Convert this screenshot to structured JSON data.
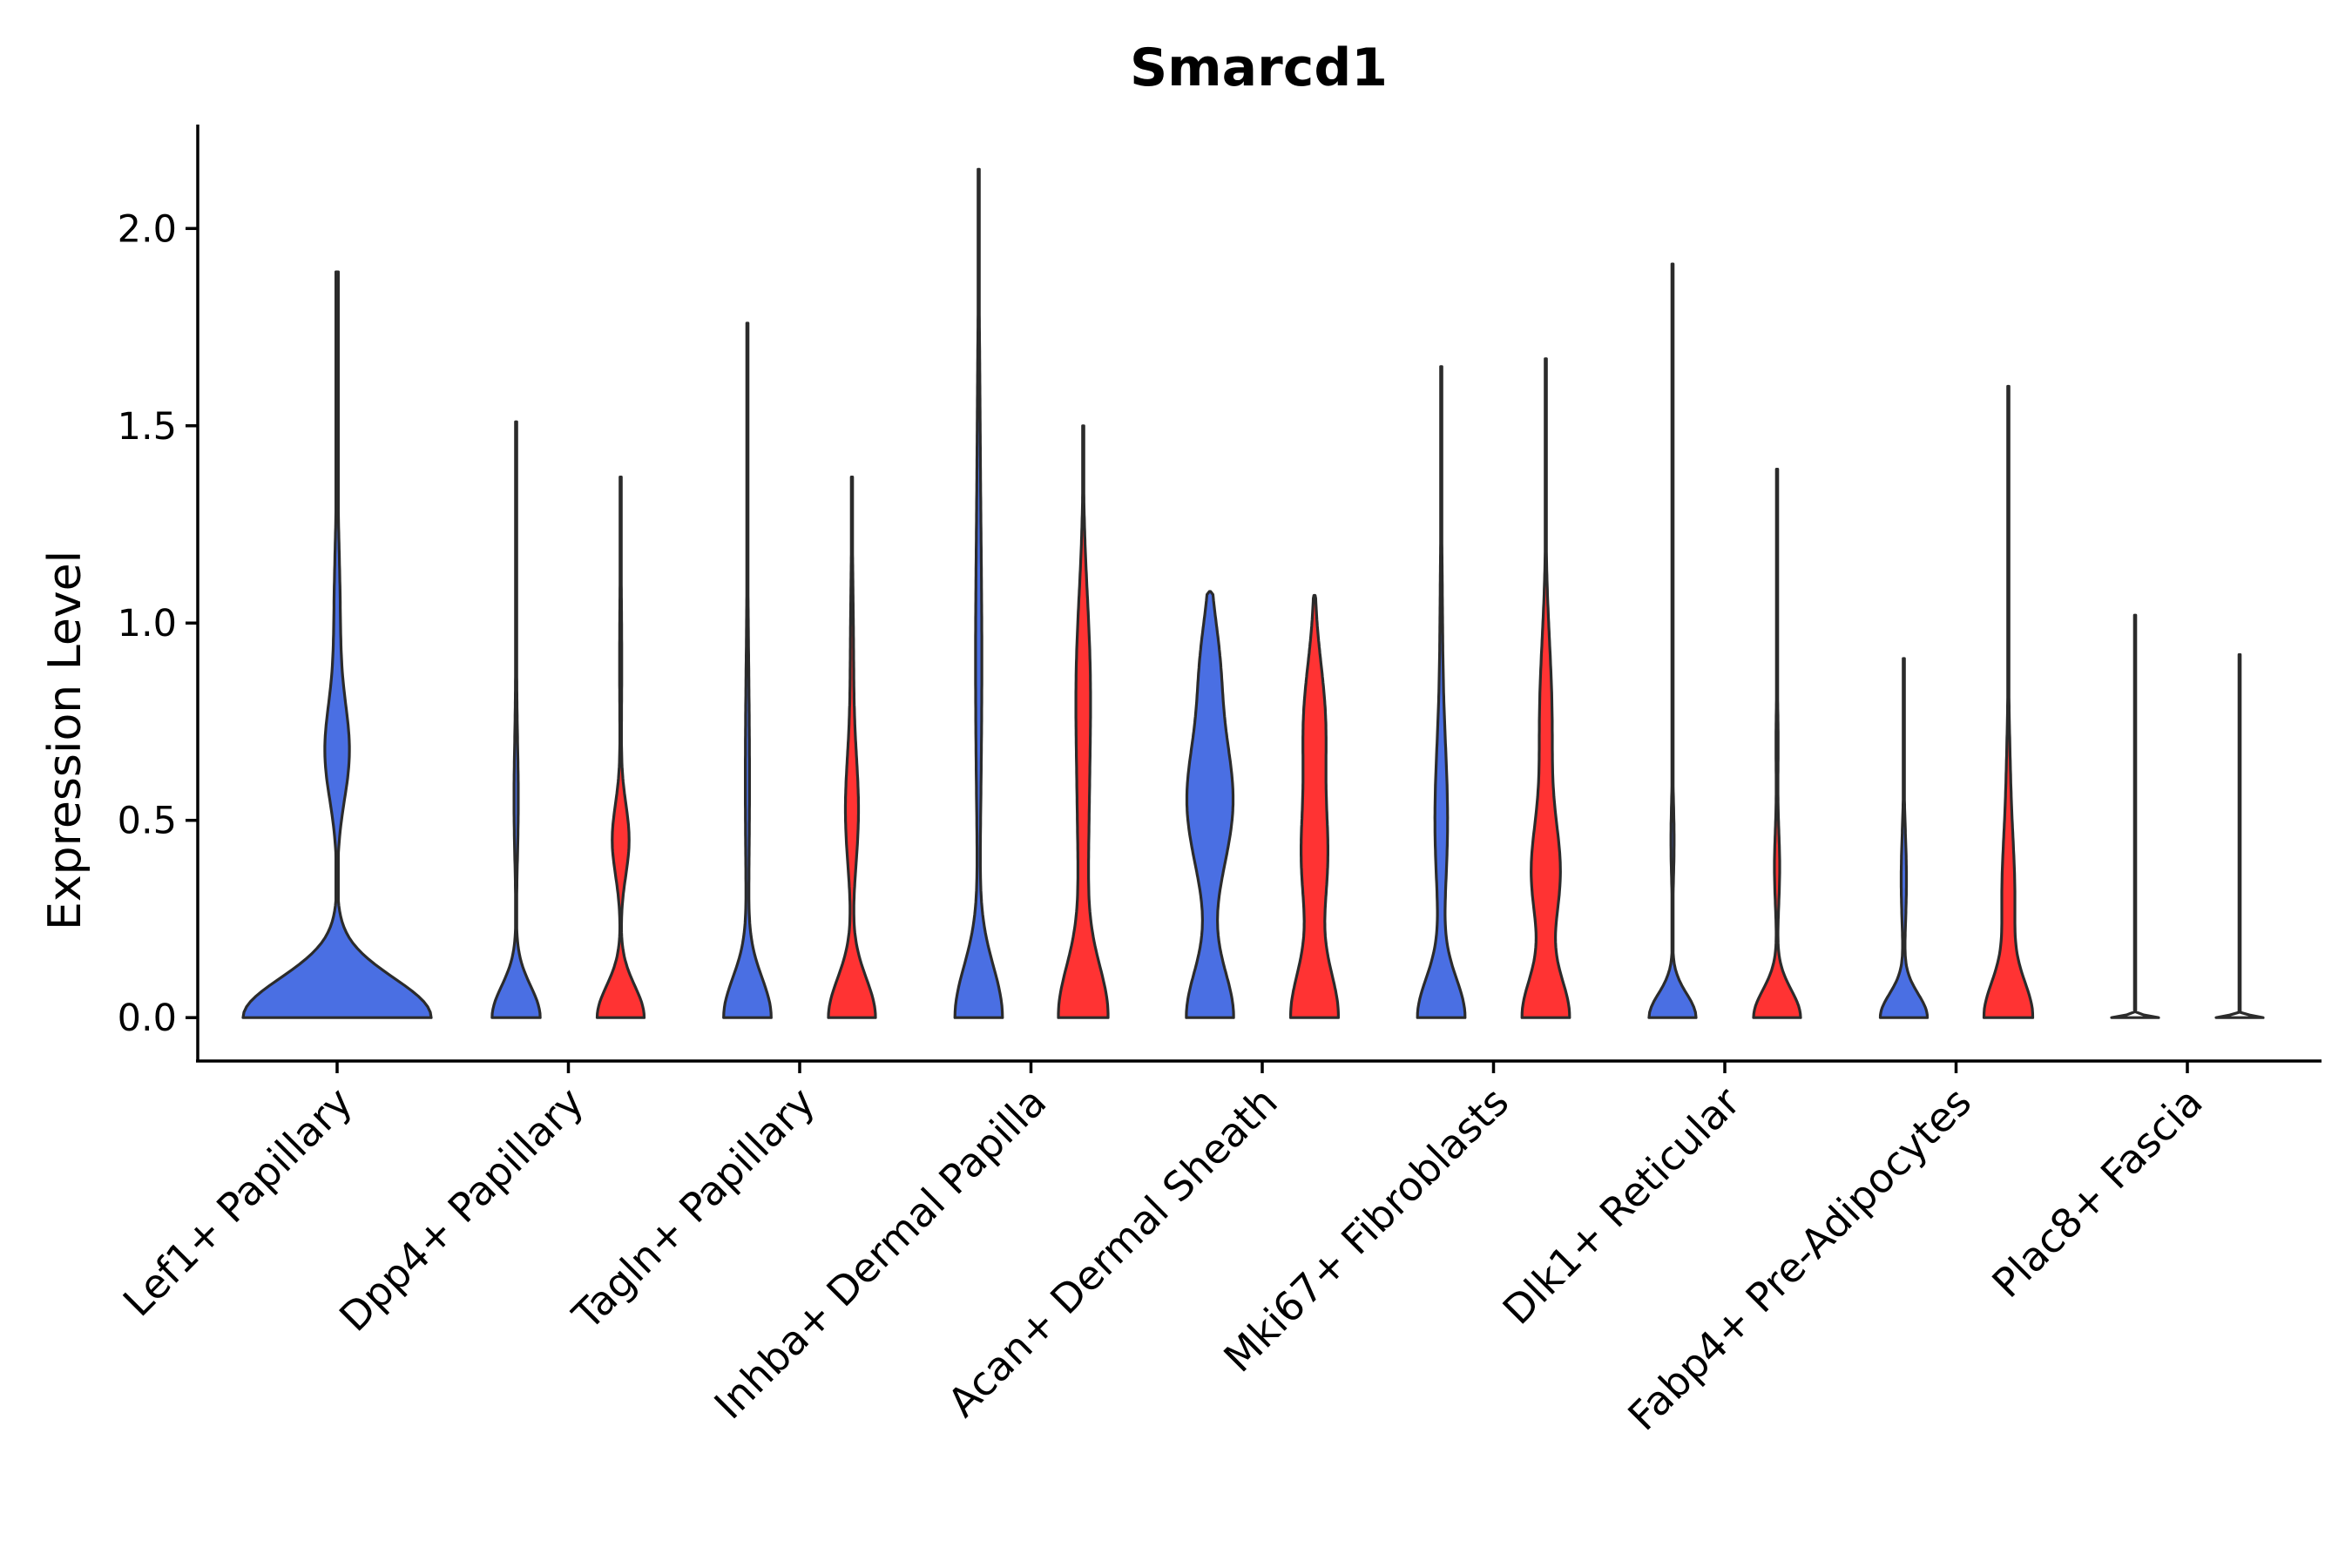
{
  "chart_data": {
    "type": "violin",
    "title": "Smarcd1",
    "xlabel": "",
    "ylabel": "Expression Level",
    "ylim": [
      -0.11,
      2.27
    ],
    "yticks": [
      0.0,
      0.5,
      1.0,
      1.5,
      2.0
    ],
    "ytick_labels": [
      "0.0",
      "0.5",
      "1.0",
      "1.5",
      "2.0"
    ],
    "series_colors": [
      "#4A6FE3",
      "#FF3333"
    ],
    "categories": [
      {
        "label": "Lef1+ Papillary",
        "violins": [
          {
            "max": 1.89,
            "width": 0.9,
            "peaks": [
              [
                0.0,
                0.9,
                0.1
              ],
              [
                0.67,
                0.11,
                0.12
              ],
              [
                1.0,
                0.03,
                0.2
              ]
            ]
          }
        ]
      },
      {
        "label": "Dpp4+ Papillary",
        "violins": [
          {
            "max": 1.51,
            "width": 0.46,
            "peaks": [
              [
                0.0,
                0.46,
                0.08
              ],
              [
                0.55,
                0.04,
                0.15
              ],
              [
                1.0,
                0.01,
                0.2
              ]
            ]
          },
          {
            "max": 1.37,
            "width": 0.45,
            "peaks": [
              [
                0.0,
                0.45,
                0.08
              ],
              [
                0.45,
                0.16,
                0.09
              ],
              [
                0.9,
                0.02,
                0.2
              ]
            ]
          }
        ]
      },
      {
        "label": "Tagln+ Papillary",
        "violins": [
          {
            "max": 1.76,
            "width": 0.45,
            "peaks": [
              [
                0.0,
                0.45,
                0.1
              ],
              [
                0.6,
                0.04,
                0.3
              ]
            ]
          },
          {
            "max": 1.37,
            "width": 0.45,
            "peaks": [
              [
                0.0,
                0.45,
                0.1
              ],
              [
                0.52,
                0.12,
                0.14
              ],
              [
                0.9,
                0.03,
                0.2
              ]
            ]
          }
        ]
      },
      {
        "label": "Inhba+ Dermal Papilla",
        "violins": [
          {
            "max": 2.15,
            "width": 0.45,
            "peaks": [
              [
                0.0,
                0.45,
                0.13
              ],
              [
                0.9,
                0.06,
                0.4
              ],
              [
                1.6,
                0.01,
                0.2
              ]
            ]
          },
          {
            "max": 1.5,
            "width": 0.45,
            "peaks": [
              [
                0.0,
                0.45,
                0.13
              ],
              [
                0.5,
                0.1,
                0.3
              ],
              [
                0.9,
                0.09,
                0.2
              ]
            ]
          }
        ]
      },
      {
        "label": "Acan+ Dermal Sheath",
        "violins": [
          {
            "max": 1.08,
            "width": 0.45,
            "peaks": [
              [
                0.0,
                0.45,
                0.12
              ],
              [
                0.55,
                0.44,
                0.17
              ],
              [
                0.9,
                0.15,
                0.12
              ]
            ]
          },
          {
            "max": 1.07,
            "width": 0.45,
            "peaks": [
              [
                0.0,
                0.45,
                0.12
              ],
              [
                0.4,
                0.24,
                0.15
              ],
              [
                0.75,
                0.2,
                0.15
              ]
            ]
          }
        ]
      },
      {
        "label": "Mki67+ Fibroblasts",
        "violins": [
          {
            "max": 1.65,
            "width": 0.45,
            "peaks": [
              [
                0.0,
                0.45,
                0.1
              ],
              [
                0.5,
                0.12,
                0.2
              ],
              [
                1.0,
                0.02,
                0.2
              ]
            ]
          },
          {
            "max": 1.67,
            "width": 0.45,
            "peaks": [
              [
                0.0,
                0.45,
                0.1
              ],
              [
                0.36,
                0.26,
                0.13
              ],
              [
                0.75,
                0.12,
                0.2
              ]
            ]
          }
        ]
      },
      {
        "label": "Dlk1+ Reticular",
        "violins": [
          {
            "max": 1.91,
            "width": 0.45,
            "peaks": [
              [
                0.0,
                0.45,
                0.06
              ],
              [
                0.45,
                0.03,
                0.1
              ]
            ]
          },
          {
            "max": 1.39,
            "width": 0.45,
            "peaks": [
              [
                0.0,
                0.45,
                0.07
              ],
              [
                0.38,
                0.05,
                0.1
              ],
              [
                0.7,
                0.02,
                0.1
              ]
            ]
          }
        ]
      },
      {
        "label": "Fabp4+ Pre-Adipocytes",
        "violins": [
          {
            "max": 0.91,
            "width": 0.45,
            "peaks": [
              [
                0.0,
                0.45,
                0.06
              ],
              [
                0.35,
                0.05,
                0.12
              ]
            ]
          },
          {
            "max": 1.6,
            "width": 0.45,
            "peaks": [
              [
                0.0,
                0.45,
                0.09
              ],
              [
                0.3,
                0.12,
                0.15
              ],
              [
                0.6,
                0.03,
                0.15
              ]
            ]
          }
        ]
      },
      {
        "label": "Plac8+ Fascia",
        "violins": [
          {
            "max": 1.02,
            "width": 0.45,
            "peaks": [
              [
                0.0,
                0.45,
                0.005
              ]
            ]
          },
          {
            "max": 0.92,
            "width": 0.45,
            "peaks": [
              [
                0.0,
                0.45,
                0.005
              ]
            ]
          }
        ]
      }
    ]
  }
}
